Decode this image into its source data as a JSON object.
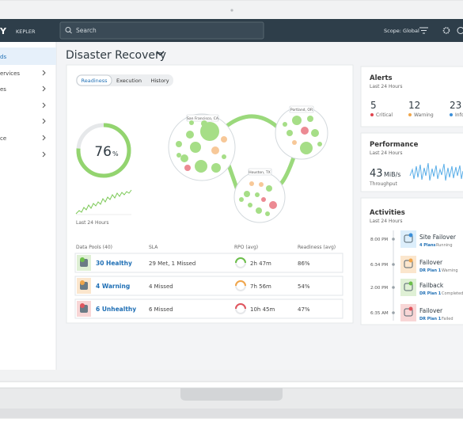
{
  "header": {
    "logo": "Y",
    "product": "KEPLER",
    "search_placeholder": "Search",
    "scope": "Scope: Global"
  },
  "sidebar": {
    "items": [
      "ds",
      "ervices",
      "es",
      "ce"
    ]
  },
  "page": {
    "title": "Disaster Recovery"
  },
  "readiness": {
    "tabs": [
      "Readiness",
      "Execution",
      "History"
    ],
    "score": "76",
    "unit": "%",
    "period": "Last 24 Hours",
    "locations": [
      "San Francisco, CA",
      "Portland, OR",
      "Houston, TX"
    ]
  },
  "table": {
    "headers": [
      "Data Pools (40)",
      "SLA",
      "RPO (avg)",
      "Readiness (avg)"
    ],
    "rows": [
      [
        "30 Healthy",
        "29 Met, 1 Missed",
        "2h 47m",
        "86%"
      ],
      [
        "4 Warning",
        "4 Missed",
        "7h 56m",
        "54%"
      ],
      [
        "6 Unhealthy",
        "6 Missed",
        "10h 45m",
        "47%"
      ]
    ]
  },
  "alerts": {
    "title": "Alerts",
    "period": "Last 24 Hours",
    "items": [
      {
        "count": "5",
        "label": "Critical"
      },
      {
        "count": "12",
        "label": "Warning"
      },
      {
        "count": "23",
        "label": "Info"
      }
    ]
  },
  "performance": {
    "title": "Performance",
    "period": "Last 24 Hours",
    "value": "43",
    "unit": "MiB/s",
    "metric": "Throughput"
  },
  "activities": {
    "title": "Activities",
    "period": "Last 24 Hours",
    "items": [
      {
        "time": "8:00 PM",
        "title": "Site Failover",
        "detail": "4 Plans",
        "status": "Running"
      },
      {
        "time": "6:34 PM",
        "title": "Failover",
        "detail": "DR Plan 1",
        "status": "Warning"
      },
      {
        "time": "2:00 PM",
        "title": "Failback",
        "detail": "DR Plan 1",
        "status": "Completed"
      },
      {
        "time": "6:35 AM",
        "title": "Failover",
        "detail": "DR Plan 1",
        "status": "Failed"
      }
    ]
  }
}
